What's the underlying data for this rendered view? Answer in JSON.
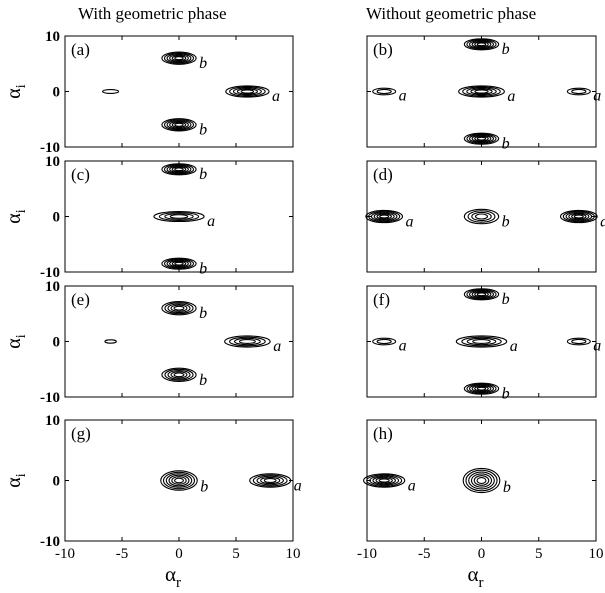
{
  "columns": [
    {
      "title": "With geometric phase"
    },
    {
      "title": "Without geometric phase"
    }
  ],
  "chart_data": [
    {
      "type": "contour",
      "panel": "(a)",
      "xlabel": "",
      "ylabel": "α_i",
      "xlim": [
        -10,
        10
      ],
      "ylim": [
        -10,
        10
      ],
      "yticks": [
        "10",
        "0",
        "-10"
      ],
      "xticks": [],
      "peaks": [
        {
          "x": 0,
          "y": 6,
          "label": "b",
          "sx": 1.5,
          "sy": 1.1,
          "levels": 6
        },
        {
          "x": 0,
          "y": -6,
          "label": "b",
          "sx": 1.5,
          "sy": 1.1,
          "levels": 6
        },
        {
          "x": 6,
          "y": 0,
          "label": "a",
          "sx": 1.9,
          "sy": 1.0,
          "levels": 5
        },
        {
          "x": -6,
          "y": 0,
          "label": "",
          "sx": 0.7,
          "sy": 0.35,
          "levels": 1
        }
      ]
    },
    {
      "type": "contour",
      "panel": "(b)",
      "xlabel": "",
      "ylabel": "",
      "xlim": [
        -10,
        10
      ],
      "ylim": [
        -10,
        10
      ],
      "yticks": [],
      "xticks": [],
      "peaks": [
        {
          "x": 0,
          "y": 8.5,
          "label": "b",
          "sx": 1.5,
          "sy": 1.0,
          "levels": 6
        },
        {
          "x": 0,
          "y": 0,
          "label": "a",
          "sx": 2.0,
          "sy": 1.0,
          "levels": 5
        },
        {
          "x": 0,
          "y": -8.5,
          "label": "b",
          "sx": 1.5,
          "sy": 1.0,
          "levels": 6
        },
        {
          "x": -8.5,
          "y": 0,
          "label": "a",
          "sx": 1.0,
          "sy": 0.6,
          "levels": 2
        },
        {
          "x": 8.5,
          "y": 0,
          "label": "a",
          "sx": 1.0,
          "sy": 0.6,
          "levels": 2
        }
      ]
    },
    {
      "type": "contour",
      "panel": "(c)",
      "xlabel": "",
      "ylabel": "α_i",
      "xlim": [
        -10,
        10
      ],
      "ylim": [
        -10,
        10
      ],
      "yticks": [
        "10",
        "0",
        "-10"
      ],
      "xticks": [],
      "peaks": [
        {
          "x": 0,
          "y": 8.5,
          "label": "b",
          "sx": 1.5,
          "sy": 1.0,
          "levels": 6
        },
        {
          "x": 0,
          "y": 0,
          "label": "a",
          "sx": 2.2,
          "sy": 0.9,
          "levels": 4
        },
        {
          "x": 0,
          "y": -8.5,
          "label": "b",
          "sx": 1.5,
          "sy": 1.0,
          "levels": 6
        }
      ]
    },
    {
      "type": "contour",
      "panel": "(d)",
      "xlabel": "",
      "ylabel": "",
      "xlim": [
        -10,
        10
      ],
      "ylim": [
        -10,
        10
      ],
      "yticks": [],
      "xticks": [],
      "peaks": [
        {
          "x": -8.5,
          "y": 0,
          "label": "a",
          "sx": 1.6,
          "sy": 1.1,
          "levels": 6
        },
        {
          "x": 0,
          "y": 0,
          "label": "b",
          "sx": 1.5,
          "sy": 1.3,
          "levels": 4
        },
        {
          "x": 8.5,
          "y": 0,
          "label": "a",
          "sx": 1.6,
          "sy": 1.1,
          "levels": 6
        }
      ]
    },
    {
      "type": "contour",
      "panel": "(e)",
      "xlabel": "",
      "ylabel": "α_i",
      "xlim": [
        -10,
        10
      ],
      "ylim": [
        -10,
        10
      ],
      "yticks": [
        "10",
        "0",
        "-10"
      ],
      "xticks": [],
      "peaks": [
        {
          "x": 0,
          "y": 6,
          "label": "b",
          "sx": 1.5,
          "sy": 1.2,
          "levels": 5
        },
        {
          "x": 0,
          "y": -6,
          "label": "b",
          "sx": 1.5,
          "sy": 1.2,
          "levels": 5
        },
        {
          "x": 6,
          "y": 0,
          "label": "a",
          "sx": 2.0,
          "sy": 1.0,
          "levels": 4
        },
        {
          "x": -6,
          "y": 0,
          "label": "",
          "sx": 0.5,
          "sy": 0.3,
          "levels": 1
        }
      ]
    },
    {
      "type": "contour",
      "panel": "(f)",
      "xlabel": "",
      "ylabel": "",
      "xlim": [
        -10,
        10
      ],
      "ylim": [
        -10,
        10
      ],
      "yticks": [],
      "xticks": [],
      "peaks": [
        {
          "x": 0,
          "y": 8.5,
          "label": "b",
          "sx": 1.5,
          "sy": 1.0,
          "levels": 6
        },
        {
          "x": 0,
          "y": 0,
          "label": "a",
          "sx": 2.2,
          "sy": 1.0,
          "levels": 4
        },
        {
          "x": 0,
          "y": -8.5,
          "label": "b",
          "sx": 1.5,
          "sy": 1.0,
          "levels": 6
        },
        {
          "x": -8.5,
          "y": 0,
          "label": "a",
          "sx": 1.0,
          "sy": 0.6,
          "levels": 2
        },
        {
          "x": 8.5,
          "y": 0,
          "label": "a",
          "sx": 1.0,
          "sy": 0.6,
          "levels": 2
        }
      ]
    },
    {
      "type": "contour",
      "panel": "(g)",
      "xlabel": "α_r",
      "ylabel": "α_i",
      "xlim": [
        -10,
        10
      ],
      "ylim": [
        -10,
        10
      ],
      "yticks": [
        "10",
        "0",
        "-10"
      ],
      "xticks": [
        "-10",
        "-5",
        "0",
        "5",
        "10"
      ],
      "peaks": [
        {
          "x": 0,
          "y": 0,
          "label": "b",
          "sx": 1.6,
          "sy": 1.6,
          "levels": 6
        },
        {
          "x": 8,
          "y": 0,
          "label": "a",
          "sx": 1.8,
          "sy": 1.1,
          "levels": 5
        }
      ]
    },
    {
      "type": "contour",
      "panel": "(h)",
      "xlabel": "α_r",
      "ylabel": "",
      "xlim": [
        -10,
        10
      ],
      "ylim": [
        -10,
        10
      ],
      "yticks": [],
      "xticks": [
        "-10",
        "-5",
        "0",
        "5",
        "10"
      ],
      "peaks": [
        {
          "x": -8.5,
          "y": 0,
          "label": "a",
          "sx": 1.8,
          "sy": 1.1,
          "levels": 6
        },
        {
          "x": 0,
          "y": 0,
          "label": "b",
          "sx": 1.6,
          "sy": 2.0,
          "levels": 6
        }
      ]
    }
  ]
}
